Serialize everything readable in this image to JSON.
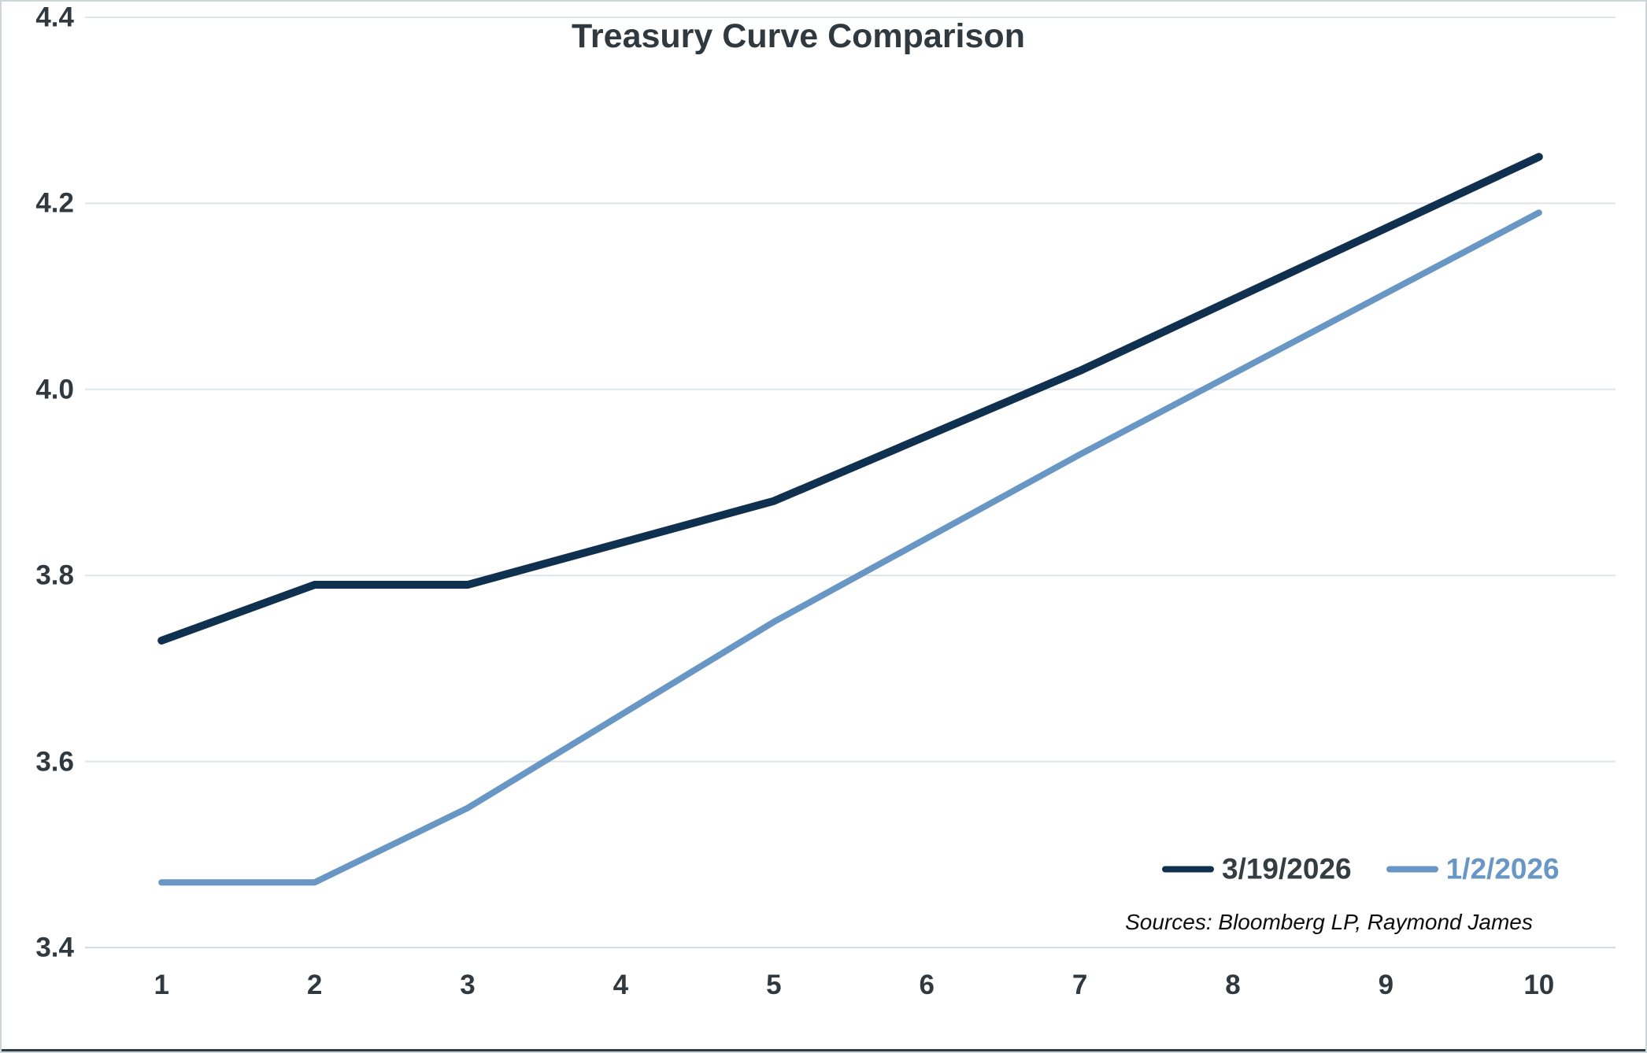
{
  "chart_data": {
    "type": "line",
    "title": "Treasury Curve Comparison",
    "xlabel": "",
    "ylabel": "",
    "x_categories": [
      "1",
      "2",
      "3",
      "4",
      "5",
      "6",
      "7",
      "8",
      "9",
      "10"
    ],
    "y_axis": {
      "min": 3.4,
      "max": 4.4,
      "step": 0.2,
      "decimals": 1
    },
    "grid": true,
    "legend_position": "inside-bottom-right",
    "series": [
      {
        "name": "3/19/2026",
        "color": "#10304f",
        "stroke_width": 10,
        "label_color": "#343d42",
        "points": [
          {
            "x": 1,
            "y": 3.73
          },
          {
            "x": 2,
            "y": 3.79
          },
          {
            "x": 3,
            "y": 3.79
          },
          {
            "x": 5,
            "y": 3.88
          },
          {
            "x": 7,
            "y": 4.02
          },
          {
            "x": 10,
            "y": 4.25
          }
        ]
      },
      {
        "name": "1/2/2026",
        "color": "#6897c5",
        "stroke_width": 8,
        "label_color": "#6897c5",
        "points": [
          {
            "x": 1,
            "y": 3.47
          },
          {
            "x": 2,
            "y": 3.47
          },
          {
            "x": 3,
            "y": 3.55
          },
          {
            "x": 5,
            "y": 3.75
          },
          {
            "x": 7,
            "y": 3.93
          },
          {
            "x": 10,
            "y": 4.19
          }
        ]
      }
    ],
    "sources_note": "Sources: Bloomberg LP, Raymond James",
    "colors": {
      "gridline": "#dfe5e8",
      "axis_line": "#d4dcdf",
      "text": "#30393f",
      "border": "#ccd5d8",
      "bottom_edge": "#2e3d44",
      "background": "#ffffff"
    }
  }
}
